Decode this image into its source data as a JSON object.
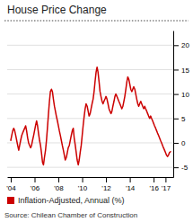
{
  "chart_data": {
    "type": "line",
    "title": "House Price Change",
    "annotations": [
      "Source: Chilean Chamber of Construction"
    ],
    "x": [
      2004.0,
      2004.08,
      2004.17,
      2004.25,
      2004.33,
      2004.42,
      2004.5,
      2004.58,
      2004.67,
      2004.75,
      2004.83,
      2004.92,
      2005.0,
      2005.08,
      2005.17,
      2005.25,
      2005.33,
      2005.42,
      2005.5,
      2005.58,
      2005.67,
      2005.75,
      2005.83,
      2005.92,
      2006.0,
      2006.08,
      2006.17,
      2006.25,
      2006.33,
      2006.42,
      2006.5,
      2006.58,
      2006.67,
      2006.75,
      2006.83,
      2006.92,
      2007.0,
      2007.08,
      2007.17,
      2007.25,
      2007.33,
      2007.42,
      2007.5,
      2007.58,
      2007.67,
      2007.75,
      2007.83,
      2007.92,
      2008.0,
      2008.08,
      2008.17,
      2008.25,
      2008.33,
      2008.42,
      2008.5,
      2008.58,
      2008.67,
      2008.75,
      2008.83,
      2008.92,
      2009.0,
      2009.08,
      2009.17,
      2009.25,
      2009.33,
      2009.42,
      2009.5,
      2009.58,
      2009.67,
      2009.75,
      2009.83,
      2009.92,
      2010.0,
      2010.08,
      2010.17,
      2010.25,
      2010.33,
      2010.42,
      2010.5,
      2010.58,
      2010.67,
      2010.75,
      2010.83,
      2010.92,
      2011.0,
      2011.08,
      2011.17,
      2011.25,
      2011.33,
      2011.42,
      2011.5,
      2011.58,
      2011.67,
      2011.75,
      2011.83,
      2011.92,
      2012.0,
      2012.08,
      2012.17,
      2012.25,
      2012.33,
      2012.42,
      2012.5,
      2012.58,
      2012.67,
      2012.75,
      2012.83,
      2012.92,
      2013.0,
      2013.08,
      2013.17,
      2013.25,
      2013.33,
      2013.42,
      2013.5,
      2013.58,
      2013.67,
      2013.75,
      2013.83,
      2013.92,
      2014.0,
      2014.08,
      2014.17,
      2014.25,
      2014.33,
      2014.42,
      2014.5,
      2014.58,
      2014.67,
      2014.75,
      2014.83,
      2014.92,
      2015.0,
      2015.08,
      2015.17,
      2015.25,
      2015.33,
      2015.42,
      2015.5,
      2015.58,
      2015.67,
      2015.75,
      2015.83,
      2015.92,
      2016.0,
      2016.08,
      2016.17,
      2016.25,
      2016.33,
      2016.42,
      2016.5,
      2016.58,
      2016.67,
      2016.75,
      2016.83,
      2016.92,
      2017.0,
      2017.08,
      2017.17,
      2017.25,
      2017.33,
      2017.42
    ],
    "series": [
      {
        "name": "Inflation-Adjusted, Annual (%)",
        "color": "#cc0000",
        "values": [
          0.5,
          1.5,
          2.5,
          3.0,
          2.5,
          1.5,
          0.5,
          -0.5,
          -1.5,
          -0.5,
          0.5,
          1.5,
          2.0,
          2.5,
          3.0,
          3.5,
          2.5,
          1.0,
          0.0,
          -0.5,
          -1.0,
          -0.5,
          0.5,
          1.5,
          2.5,
          3.5,
          4.5,
          3.5,
          2.0,
          0.5,
          -0.5,
          -2.0,
          -4.0,
          -4.5,
          -3.0,
          -1.5,
          0.5,
          3.0,
          6.0,
          8.5,
          10.5,
          11.0,
          10.5,
          9.0,
          7.5,
          6.5,
          5.5,
          4.5,
          3.5,
          2.5,
          1.5,
          0.5,
          -0.5,
          -1.5,
          -2.5,
          -3.5,
          -3.0,
          -2.0,
          -1.0,
          -0.5,
          0.5,
          1.5,
          2.5,
          3.0,
          1.0,
          -0.5,
          -2.0,
          -3.5,
          -4.5,
          -3.5,
          -2.0,
          -0.5,
          1.5,
          3.5,
          5.5,
          7.0,
          8.0,
          7.5,
          6.5,
          5.5,
          6.0,
          7.0,
          8.0,
          9.0,
          10.5,
          12.5,
          14.5,
          15.5,
          14.5,
          12.5,
          10.5,
          9.5,
          8.5,
          8.0,
          8.5,
          9.0,
          9.5,
          9.0,
          8.0,
          7.0,
          6.5,
          6.0,
          6.5,
          7.5,
          8.5,
          9.5,
          10.0,
          9.5,
          9.0,
          8.5,
          8.0,
          7.5,
          7.0,
          7.5,
          8.5,
          9.5,
          11.0,
          12.5,
          13.5,
          13.0,
          12.0,
          11.0,
          10.5,
          11.0,
          11.5,
          11.0,
          10.0,
          9.0,
          8.0,
          7.5,
          8.0,
          8.5,
          8.0,
          7.5,
          7.0,
          7.5,
          7.0,
          6.5,
          6.0,
          5.5,
          5.0,
          5.5,
          5.0,
          4.5,
          4.0,
          3.5,
          3.0,
          2.5,
          2.0,
          1.5,
          1.0,
          0.5,
          0.0,
          -0.5,
          -1.0,
          -1.5,
          -2.0,
          -2.5,
          -2.8,
          -2.5,
          -2.0,
          -1.8
        ]
      }
    ],
    "xlim": [
      2003.7,
      2017.65
    ],
    "xticks": [
      {
        "value": 2004,
        "label": "'04"
      },
      {
        "value": 2006,
        "label": "'06"
      },
      {
        "value": 2008,
        "label": "'08"
      },
      {
        "value": 2010,
        "label": "'10"
      },
      {
        "value": 2012,
        "label": "'12"
      },
      {
        "value": 2014,
        "label": "'14"
      },
      {
        "value": 2016,
        "label": "'16"
      },
      {
        "value": 2017,
        "label": "'17"
      }
    ],
    "ylim": [
      -7.0,
      23
    ],
    "yticks": [
      -5,
      0,
      5,
      10,
      15,
      20
    ],
    "grid": true,
    "legend": "lower left"
  }
}
